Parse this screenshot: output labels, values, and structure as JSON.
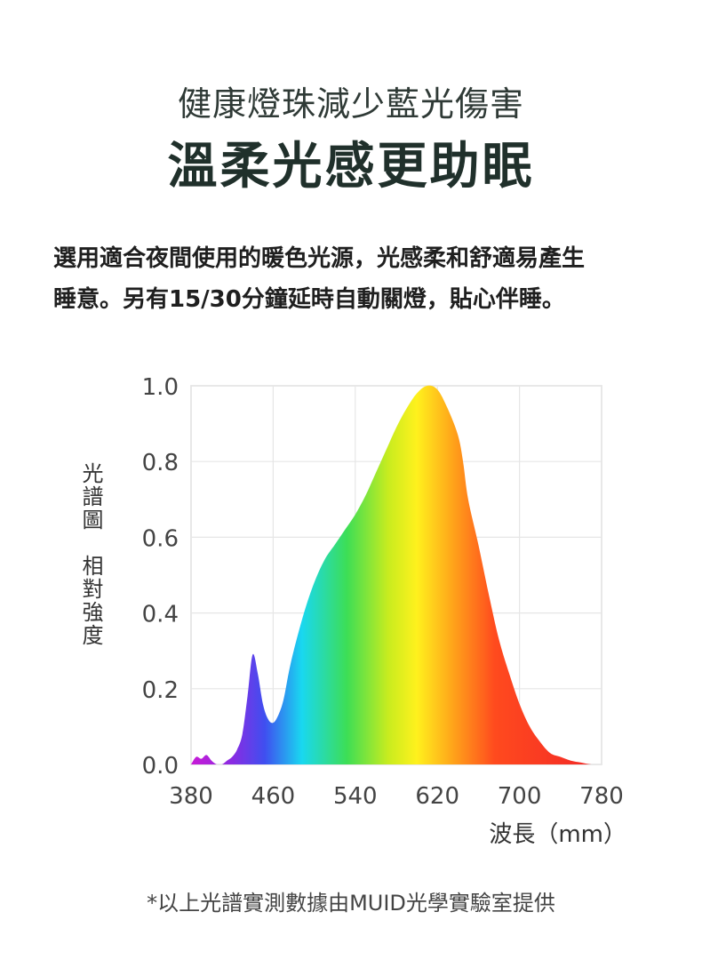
{
  "header": {
    "subtitle": "健康燈珠減少藍光傷害",
    "title": "溫柔光感更助眠"
  },
  "description": {
    "line1": "選用適合夜間使用的暖色光源，光感柔和舒適易產生",
    "line2": "睡意。另有15/30分鐘延時自動關燈，貼心伴睡。"
  },
  "chart_data": {
    "type": "area",
    "ylabel_part1": "光譜圖",
    "ylabel_part2": "相對強度",
    "xlabel": "波長（mm）",
    "xlim": [
      380,
      780
    ],
    "ylim": [
      0.0,
      1.0
    ],
    "x_ticks": [
      "380",
      "460",
      "540",
      "620",
      "700",
      "780"
    ],
    "y_ticks": [
      "0.0",
      "0.2",
      "0.4",
      "0.6",
      "0.8",
      "1.0"
    ],
    "grid": true,
    "x": [
      380,
      385,
      390,
      395,
      400,
      405,
      410,
      415,
      420,
      425,
      430,
      435,
      440,
      445,
      450,
      455,
      460,
      465,
      470,
      475,
      480,
      490,
      500,
      510,
      520,
      530,
      540,
      550,
      560,
      570,
      580,
      590,
      600,
      610,
      620,
      630,
      640,
      645,
      650,
      660,
      670,
      680,
      690,
      700,
      710,
      720,
      730,
      740,
      750,
      760,
      770,
      780
    ],
    "values": [
      0.0,
      0.02,
      0.015,
      0.025,
      0.01,
      0.0,
      0.0,
      0.01,
      0.02,
      0.04,
      0.08,
      0.18,
      0.29,
      0.24,
      0.16,
      0.12,
      0.11,
      0.13,
      0.17,
      0.24,
      0.3,
      0.4,
      0.48,
      0.54,
      0.58,
      0.62,
      0.66,
      0.71,
      0.77,
      0.83,
      0.89,
      0.94,
      0.98,
      1.0,
      0.99,
      0.94,
      0.87,
      0.8,
      0.7,
      0.58,
      0.45,
      0.33,
      0.24,
      0.16,
      0.1,
      0.06,
      0.03,
      0.02,
      0.01,
      0.005,
      0.0,
      0.0
    ],
    "fill": "visible-spectrum gradient (violet to red)"
  },
  "footnote": "*以上光譜實測數據由MUID光學實驗室提供"
}
